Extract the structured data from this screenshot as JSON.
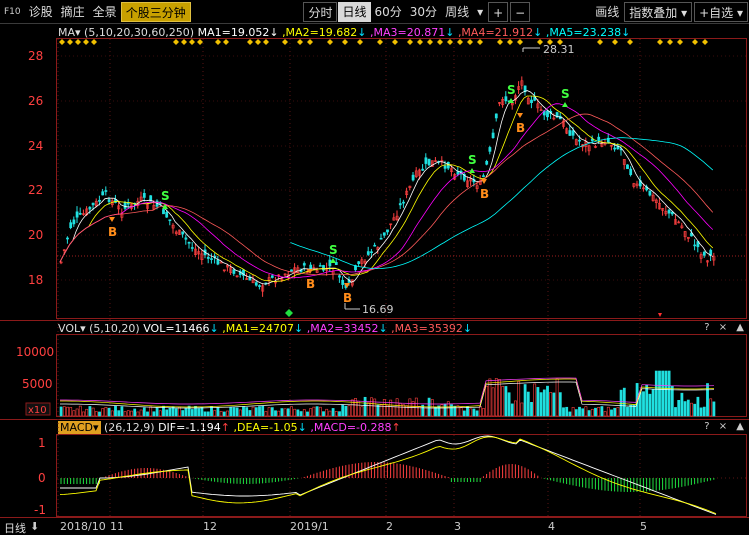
{
  "toolbar": {
    "f10": "F10",
    "items": [
      "诊股",
      "摘庄",
      "全景"
    ],
    "active_tab": "个股三分钟",
    "periods": [
      "分时",
      "日线",
      "60分",
      "30分",
      "周线"
    ],
    "selected_period": "日线",
    "period_dropdown": "▾",
    "plus": "+",
    "minus": "−",
    "right_items": [
      "画线",
      "指数叠加 ▾",
      "+自选 ▾"
    ]
  },
  "main_chart": {
    "indicator": "MA▾",
    "params": "(5,10,20,30,60,250)",
    "ma1": "MA1=19.052",
    "ma2": ",MA2=19.682",
    "ma3": ",MA3=20.871",
    "ma4": ",MA4=21.912",
    "ma5": ",MA5=23.238",
    "y_labels": [
      "28",
      "26",
      "24",
      "22",
      "20",
      "18"
    ],
    "high_label": "28.31",
    "low_label": "16.69",
    "colors": {
      "ma1": "#ffffff",
      "ma2": "#ffff00",
      "ma3": "#ff00ff",
      "ma4": "#ff5a5a",
      "ma5": "#00ffff"
    }
  },
  "volume_chart": {
    "indicator": "VOL▾",
    "params": "(5,10,20)",
    "vol": "VOL=11466",
    "ma1": ",MA1=24707",
    "ma2": ",MA2=33452",
    "ma3": ",MA3=35392",
    "y_labels": [
      "10000",
      "5000"
    ],
    "unit": "x10",
    "buttons": "? × ▲"
  },
  "macd_chart": {
    "indicator": "MACD▾",
    "params": "(26,12,9)",
    "dif": "DIF=-1.194",
    "dea": ",DEA=-1.05",
    "macd": ",MACD=-0.288",
    "y_labels": [
      "1",
      "0",
      "-1"
    ],
    "buttons": "? × ▲"
  },
  "x_axis": {
    "period": "日线",
    "dates": [
      "2018/10",
      "11",
      "12",
      "2019/1",
      "2",
      "3",
      "4",
      "5"
    ]
  },
  "signal_labels": {
    "buy": "B",
    "sell": "S"
  }
}
